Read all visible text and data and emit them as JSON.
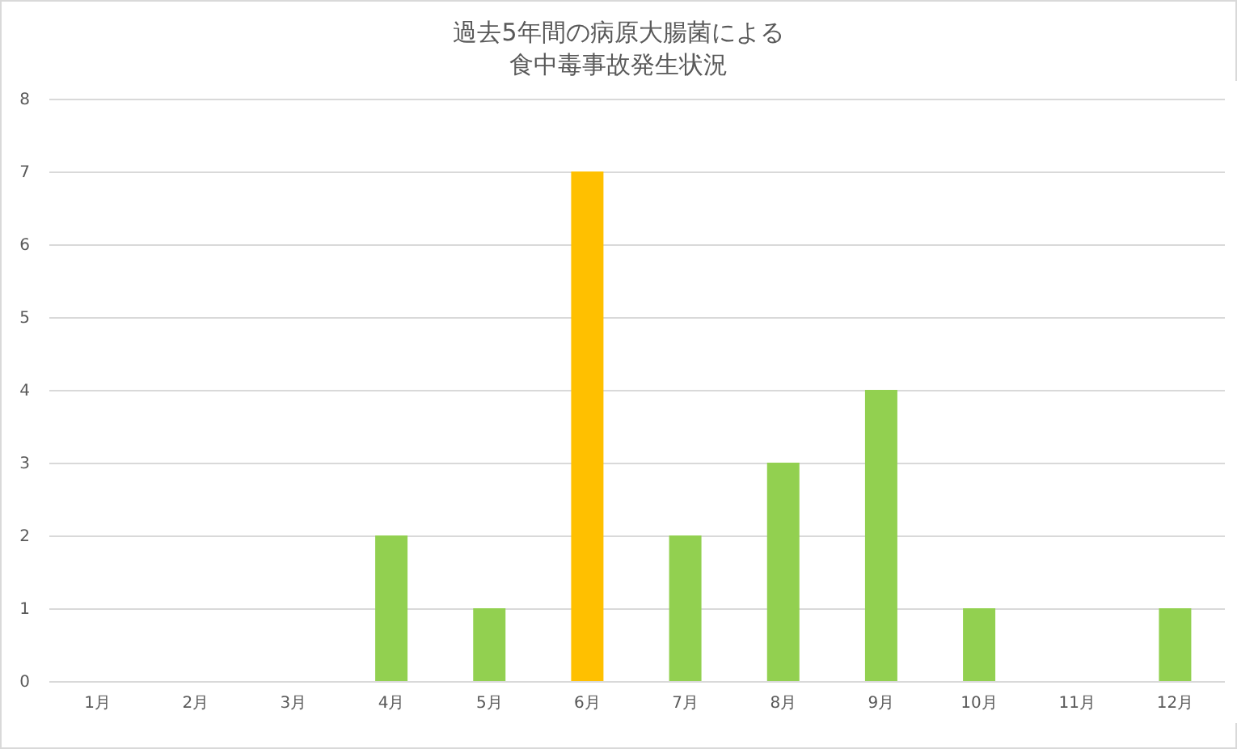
{
  "chart_data": {
    "type": "bar",
    "title": "過去5年間の病原大腸菌による食中毒事故発生状況",
    "categories": [
      "1月",
      "2月",
      "3月",
      "4月",
      "5月",
      "6月",
      "7月",
      "8月",
      "9月",
      "10月",
      "11月",
      "12月"
    ],
    "values": [
      0,
      0,
      0,
      2,
      1,
      7,
      2,
      3,
      4,
      1,
      0,
      1
    ],
    "colors": [
      "#92d050",
      "#92d050",
      "#92d050",
      "#92d050",
      "#92d050",
      "#ffc000",
      "#92d050",
      "#92d050",
      "#92d050",
      "#92d050",
      "#92d050",
      "#92d050"
    ],
    "ylim": [
      0,
      8
    ],
    "yticks": [
      0,
      1,
      2,
      3,
      4,
      5,
      6,
      7,
      8
    ],
    "grid": "y"
  }
}
